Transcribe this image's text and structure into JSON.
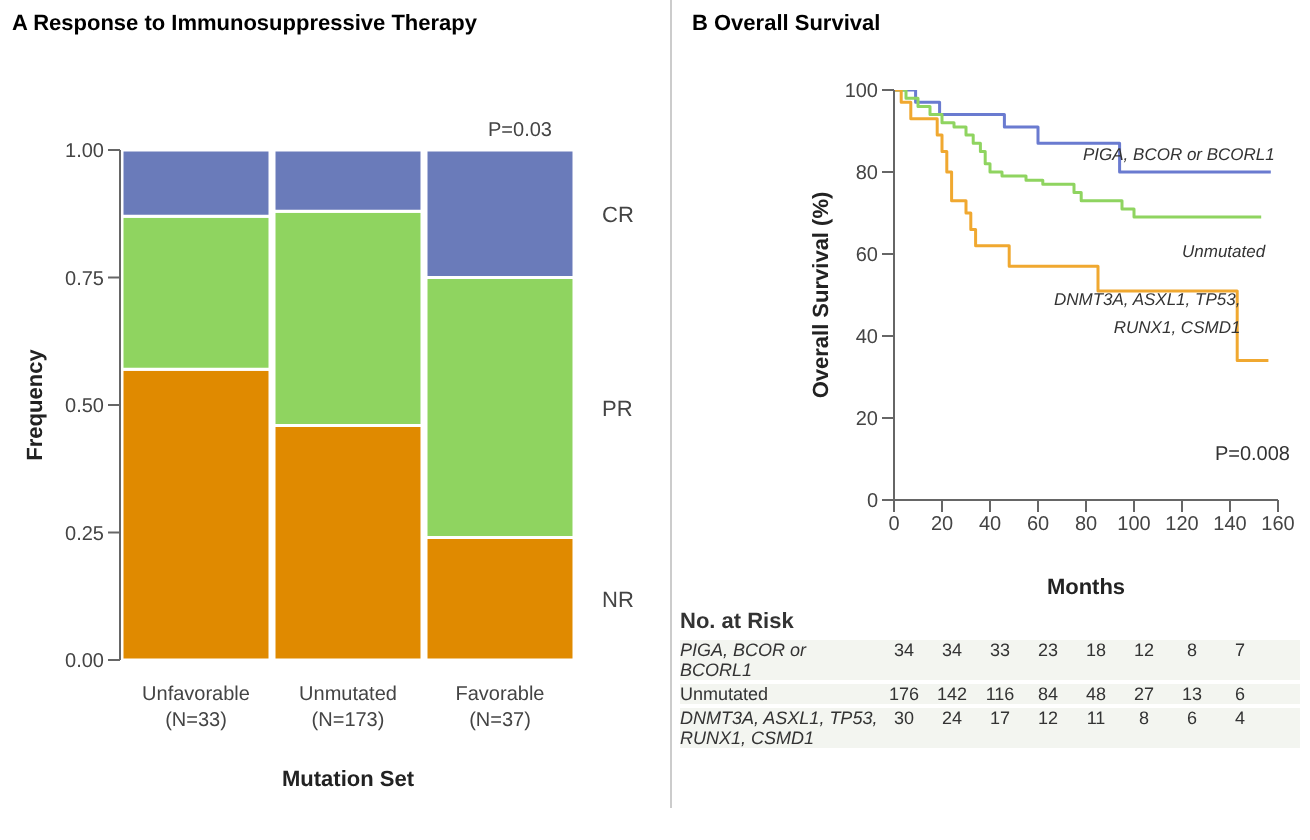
{
  "chart_data": [
    {
      "type": "bar",
      "stacked": true,
      "title": "A  Response to Immunosuppressive Therapy",
      "xlabel": "Mutation Set",
      "ylabel": "Frequency",
      "categories": [
        "Unfavorable (N=33)",
        "Unmutated (N=173)",
        "Favorable (N=37)"
      ],
      "series": [
        {
          "name": "NR",
          "color": "#e08a00",
          "values": [
            0.57,
            0.46,
            0.24
          ]
        },
        {
          "name": "PR",
          "color": "#8fd460",
          "values": [
            0.3,
            0.42,
            0.51
          ]
        },
        {
          "name": "CR",
          "color": "#6a7bba",
          "values": [
            0.13,
            0.12,
            0.25
          ]
        }
      ],
      "ylim": [
        0,
        1
      ],
      "yticks": [
        {
          "value": 0,
          "label": "0.00"
        },
        {
          "value": 0.25,
          "label": "0.25"
        },
        {
          "value": 0.5,
          "label": "0.50"
        },
        {
          "value": 0.75,
          "label": "0.75"
        },
        {
          "value": 1,
          "label": "1.00"
        }
      ],
      "grid": false,
      "legend": false,
      "annotations": [
        "P=0.03"
      ]
    },
    {
      "type": "step",
      "title": "B  Overall Survival",
      "xlabel": "Months",
      "ylabel": "Overall Survival (%)",
      "series": [
        {
          "name": "PIGA, BCOR or BCORL1",
          "color": "#6a7bd0",
          "x": [
            0,
            9,
            19,
            46,
            60,
            94,
            157
          ],
          "values": [
            100,
            97,
            94,
            91,
            87,
            80,
            80
          ]
        },
        {
          "name": "Unmutated",
          "color": "#8fd460",
          "x": [
            0,
            5,
            10,
            15,
            20,
            25,
            30,
            33,
            36,
            38,
            40,
            45,
            55,
            62,
            75,
            78,
            90,
            95,
            100,
            153
          ],
          "values": [
            100,
            98,
            96,
            94,
            92,
            91,
            89,
            87,
            85,
            82,
            80,
            79,
            78,
            77,
            75,
            73,
            73,
            71,
            69,
            69
          ]
        },
        {
          "name": "DNMT3A, ASXL1, TP53, RUNX1, CSMD1",
          "color": "#f0a830",
          "x": [
            0,
            3,
            7,
            18,
            20,
            22,
            24,
            28,
            30,
            32,
            34,
            48,
            85,
            143,
            156
          ],
          "values": [
            100,
            97,
            93,
            89,
            85,
            80,
            73,
            73,
            70,
            66,
            62,
            57,
            51,
            34,
            34
          ]
        }
      ],
      "xlim": [
        0,
        160
      ],
      "xticks": [
        0,
        20,
        40,
        60,
        80,
        100,
        120,
        140,
        160
      ],
      "ylim": [
        0,
        100
      ],
      "yticks": [
        0,
        20,
        40,
        60,
        80,
        100
      ],
      "grid": false,
      "legend": false,
      "marker": "none",
      "annotations": [
        "P=0.008",
        "No. at Risk",
        "PIGA, BCOR or BCORL1  34  34  33  23  18  12  8  7",
        "Unmutated  176  142  116  84  48  27  13  6",
        "DNMT3A, ASXL1, TP53, RUNX1, CSMD1  30  24  17  12  11  8  6  4"
      ]
    }
  ]
}
